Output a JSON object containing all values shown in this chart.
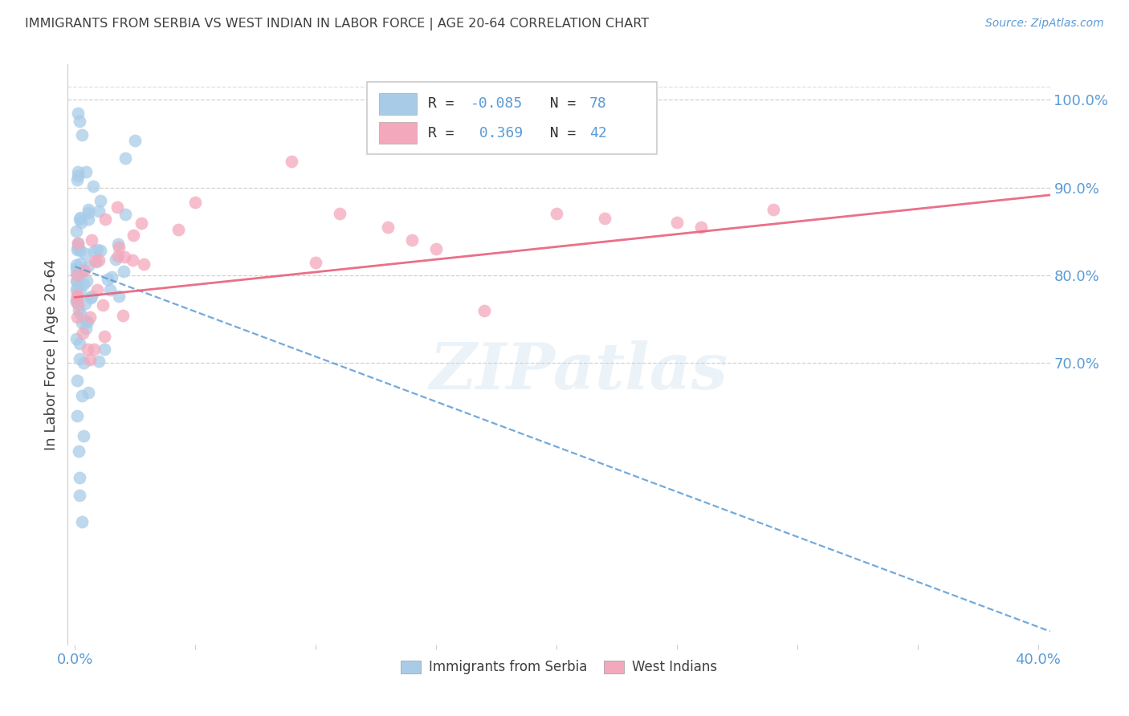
{
  "title": "IMMIGRANTS FROM SERBIA VS WEST INDIAN IN LABOR FORCE | AGE 20-64 CORRELATION CHART",
  "source": "Source: ZipAtlas.com",
  "ylabel": "In Labor Force | Age 20-64",
  "xlim": [
    -0.003,
    0.405
  ],
  "ylim": [
    0.38,
    1.04
  ],
  "xtick_positions": [
    0.0,
    0.05,
    0.1,
    0.15,
    0.2,
    0.25,
    0.3,
    0.35,
    0.4
  ],
  "xticklabels": [
    "0.0%",
    "",
    "",
    "",
    "",
    "",
    "",
    "",
    "40.0%"
  ],
  "yticks_right": [
    0.7,
    0.8,
    0.9,
    1.0
  ],
  "ytick_labels_right": [
    "70.0%",
    "80.0%",
    "90.0%",
    "100.0%"
  ],
  "serbia_color": "#a8cce8",
  "westindian_color": "#f4a8bc",
  "serbia_line_color": "#5b9bd5",
  "westindian_line_color": "#e8607a",
  "serbia_R": -0.085,
  "serbia_N": 78,
  "westindian_R": 0.369,
  "westindian_N": 42,
  "serbia_label": "Immigrants from Serbia",
  "westindian_label": "West Indians",
  "background_color": "#ffffff",
  "grid_color": "#cccccc",
  "axis_label_color": "#5b9bd5",
  "title_color": "#404040",
  "text_color": "#404040",
  "watermark": "ZIPatlas",
  "serbia_intercept": 0.808,
  "serbia_slope": -1.0,
  "wi_intercept": 0.775,
  "wi_slope": 0.3
}
